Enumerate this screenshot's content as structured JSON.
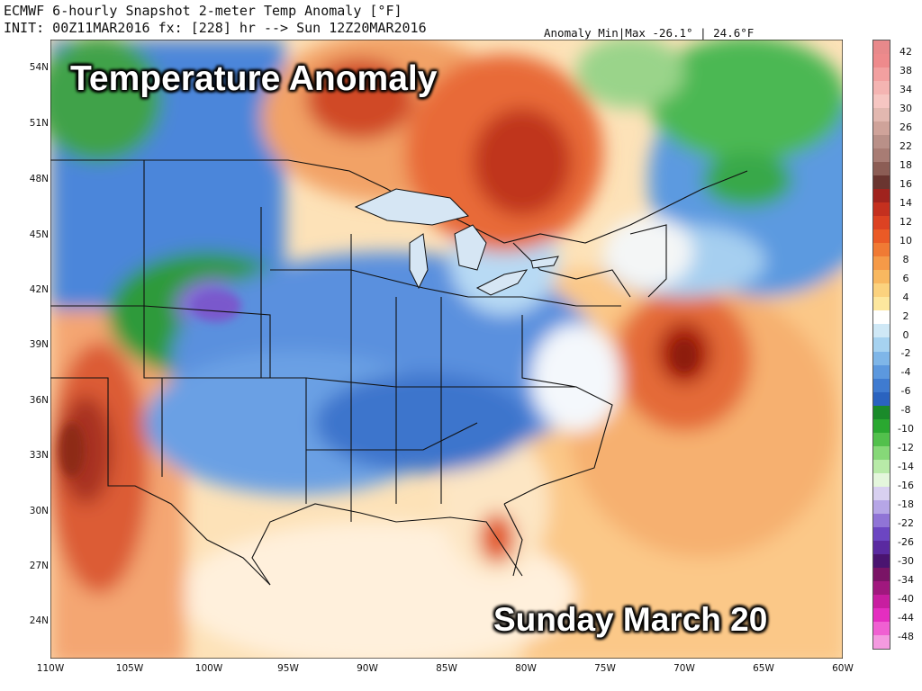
{
  "header": {
    "line1": "ECMWF 6-hourly Snapshot 2-meter Temp Anomaly [°F]",
    "line2": "INIT: 00Z11MAR2016 fx: [228] hr --> Sun 12Z20MAR2016",
    "minmax": "Anomaly Min|Max -26.1° | 24.6°F"
  },
  "overlay": {
    "title": "Temperature Anomaly",
    "date": "Sunday March 20"
  },
  "axes": {
    "lat_labels": [
      "54N",
      "51N",
      "48N",
      "45N",
      "42N",
      "39N",
      "36N",
      "33N",
      "30N",
      "27N",
      "24N"
    ],
    "lon_labels": [
      "110W",
      "105W",
      "100W",
      "95W",
      "90W",
      "85W",
      "80W",
      "75W",
      "70W",
      "65W",
      "60W"
    ]
  },
  "colorbar": {
    "labels": [
      "42",
      "38",
      "34",
      "30",
      "26",
      "22",
      "18",
      "16",
      "14",
      "12",
      "10",
      "8",
      "6",
      "4",
      "2",
      "0",
      "-2",
      "-4",
      "-6",
      "-8",
      "-10",
      "-12",
      "-14",
      "-16",
      "-18",
      "-22",
      "-26",
      "-30",
      "-34",
      "-40",
      "-44",
      "-48"
    ],
    "colors": [
      "#e8898b",
      "#ee8a8c",
      "#f2a0a0",
      "#f4b4b2",
      "#f6c6c2",
      "#e2b8b0",
      "#cfa39a",
      "#b99088",
      "#a87c74",
      "#8c5d55",
      "#6a3530",
      "#a0231e",
      "#c4301f",
      "#dc4222",
      "#ea5a26",
      "#f07a34",
      "#f59a48",
      "#f8b860",
      "#fbd27e",
      "#fde79e",
      "#ffffff",
      "#cfe8f6",
      "#a6d2f0",
      "#7fb6e8",
      "#5c98de",
      "#3f7bd0",
      "#2a63bf",
      "#1a8a2a",
      "#2aa830",
      "#52c04c",
      "#86d878",
      "#b8eaa8",
      "#e4f6dc",
      "#d8d0f0",
      "#b6a6e6",
      "#9074d6",
      "#6c46c2",
      "#5a2aa0",
      "#4a1470",
      "#7a1466",
      "#a0187e",
      "#c81ea0",
      "#e42ec0",
      "#f060d2",
      "#f49ae0"
    ]
  },
  "legend_colors": {
    "warm_strong": "#9e1a0e",
    "warm": "#e86a34",
    "warm_light": "#fbd9a0",
    "neutral": "#fff6e6",
    "cool_light": "#a8d0f2",
    "cool": "#4d86dc",
    "cool_strong": "#2a5fc8",
    "green": "#2aa040",
    "purple": "#8a6ad8",
    "border": "#111111"
  }
}
